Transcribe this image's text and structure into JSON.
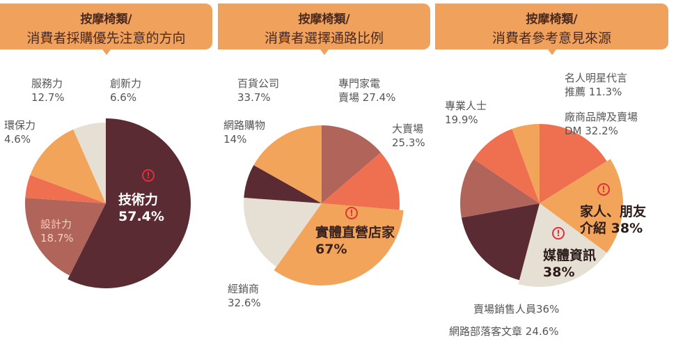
{
  "colors": {
    "dark": "#5b2b33",
    "rose": "#b0645a",
    "coral": "#ef7050",
    "orange": "#f2a55a",
    "beige": "#e6e0d4",
    "header": "#f0a15c"
  },
  "chart_data": [
    {
      "type": "pie",
      "title": "按摩椅類/",
      "subtitle": "消費者採購優先注意的方向",
      "slices": [
        {
          "label": "技術力",
          "value": 57.4,
          "pct": "57.4%",
          "color": "dark",
          "highlight": true
        },
        {
          "label": "設計力",
          "value": 18.7,
          "pct": "18.7%",
          "color": "rose"
        },
        {
          "label": "環保力",
          "value": 4.6,
          "pct": "4.6%",
          "color": "coral"
        },
        {
          "label": "服務力",
          "value": 12.7,
          "pct": "12.7%",
          "color": "orange"
        },
        {
          "label": "創新力",
          "value": 6.6,
          "pct": "6.6%",
          "color": "beige"
        }
      ]
    },
    {
      "type": "pie",
      "title": "按摩椅類/",
      "subtitle": "消費者選擇通路比例",
      "slices": [
        {
          "label": "專門家電賣場",
          "value": 27.4,
          "pct": "27.4%",
          "color": "rose"
        },
        {
          "label": "大賣場",
          "value": 25.3,
          "pct": "25.3%",
          "color": "coral"
        },
        {
          "label": "實體直營店家",
          "value": 67,
          "pct": "67%",
          "color": "orange",
          "highlight": true
        },
        {
          "label": "經銷商",
          "value": 32.6,
          "pct": "32.6%",
          "color": "beige"
        },
        {
          "label": "網路購物",
          "value": 14,
          "pct": "14%",
          "color": "dark"
        },
        {
          "label": "百貨公司",
          "value": 33.7,
          "pct": "33.7%",
          "color": "orange"
        }
      ]
    },
    {
      "type": "pie",
      "title": "按摩椅類/",
      "subtitle": "消費者參考意見來源",
      "slices": [
        {
          "label": "廠商品牌及賣場DM",
          "value": 32.2,
          "pct": "32.2%",
          "color": "coral"
        },
        {
          "label": "家人、朋友介紹",
          "value": 38,
          "pct": "38%",
          "color": "orange",
          "highlight": true
        },
        {
          "label": "媒體資訊",
          "value": 38,
          "pct": "38%",
          "color": "beige",
          "highlight": true
        },
        {
          "label": "賣場銷售人員",
          "value": 36,
          "pct": "36%",
          "color": "dark"
        },
        {
          "label": "網路部落客文章",
          "value": 24.6,
          "pct": "24.6%",
          "color": "rose"
        },
        {
          "label": "專業人士",
          "value": 19.9,
          "pct": "19.9%",
          "color": "coral"
        },
        {
          "label": "名人明星代言推薦",
          "value": 11.3,
          "pct": "11.3%",
          "color": "orange"
        }
      ]
    }
  ]
}
